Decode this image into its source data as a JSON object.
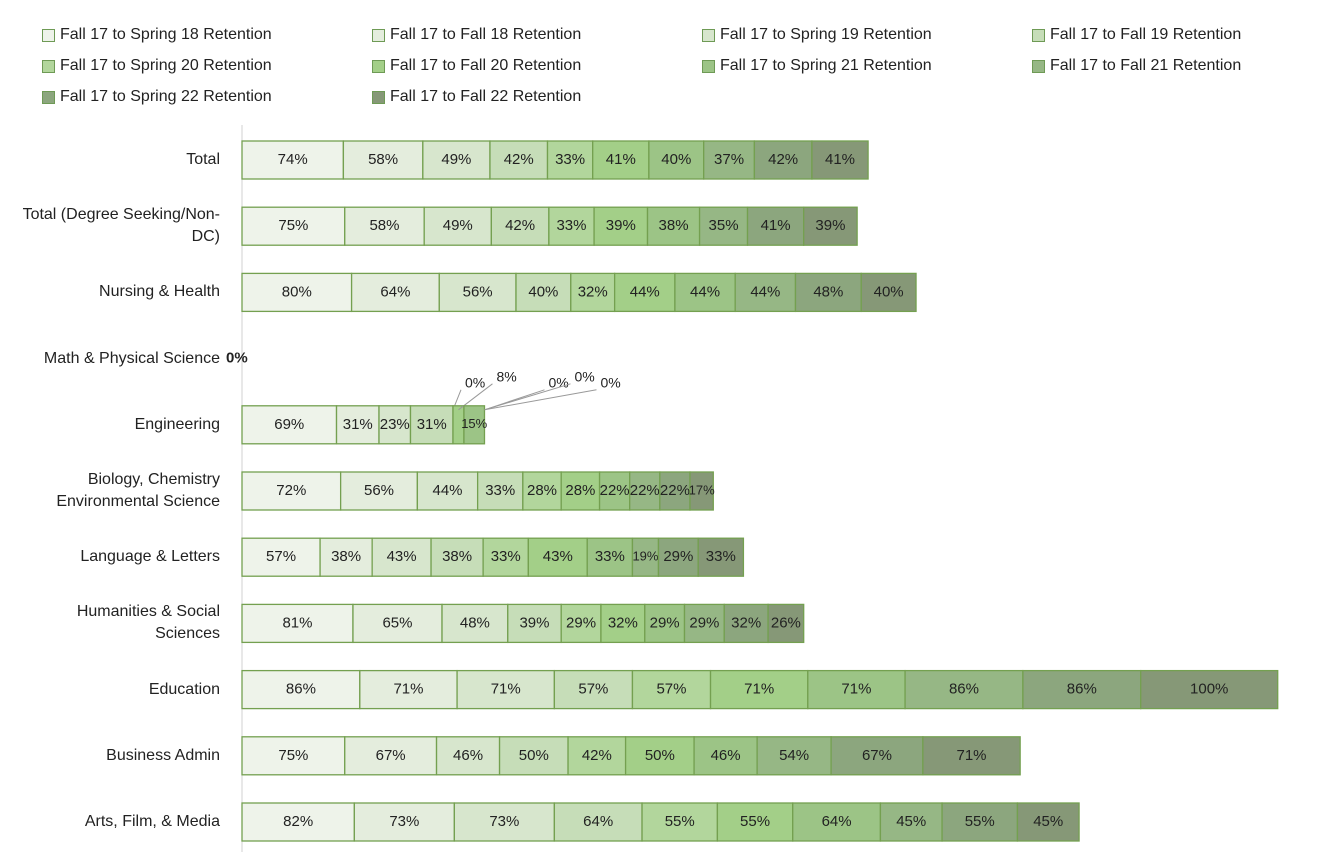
{
  "chart_data": {
    "type": "stacked_bar_horizontal",
    "categories": [
      "Total",
      "Total (Degree Seeking/Non-DC)",
      "Nursing & Health",
      "Math & Physical Science",
      "Engineering",
      "Biology, Chemistry Environmental Science",
      "Language & Letters",
      "Humanities & Social Sciences",
      "Education",
      "Business Admin",
      "Arts, Film, & Media"
    ],
    "series": [
      {
        "name": "Fall 17 to Spring 18 Retention",
        "color": "#eef3ea",
        "values": [
          74,
          75,
          80,
          0,
          69,
          72,
          57,
          81,
          86,
          75,
          82
        ],
        "value_labels": [
          "74%",
          "75%",
          "80%",
          "0%",
          "69%",
          "72%",
          "57%",
          "81%",
          "86%",
          "75%",
          "82%"
        ]
      },
      {
        "name": "Fall 17 to Fall 18 Retention",
        "color": "#e4eddd",
        "values": [
          58,
          58,
          64,
          0,
          31,
          56,
          38,
          65,
          71,
          67,
          73
        ],
        "value_labels": [
          "58%",
          "58%",
          "64%",
          null,
          "31%",
          "56%",
          "38%",
          "65%",
          "71%",
          "67%",
          "73%"
        ]
      },
      {
        "name": "Fall 17 to Spring 19 Retention",
        "color": "#d7e6cd",
        "values": [
          49,
          49,
          56,
          0,
          23,
          44,
          43,
          48,
          71,
          46,
          73
        ],
        "value_labels": [
          "49%",
          "49%",
          "56%",
          null,
          "23%",
          "44%",
          "43%",
          "48%",
          "71%",
          "46%",
          "73%"
        ]
      },
      {
        "name": "Fall 17 to Fall 19 Retention",
        "color": "#c6ddb8",
        "values": [
          42,
          42,
          40,
          0,
          31,
          33,
          38,
          39,
          57,
          50,
          64
        ],
        "value_labels": [
          "42%",
          "42%",
          "40%",
          null,
          "31%",
          "33%",
          "38%",
          "39%",
          "57%",
          "50%",
          "64%"
        ]
      },
      {
        "name": "Fall 17 to Spring 20 Retention",
        "color": "#b2d69c",
        "values": [
          33,
          33,
          32,
          0,
          0,
          28,
          33,
          29,
          57,
          42,
          55
        ],
        "value_labels": [
          "33%",
          "33%",
          "32%",
          null,
          "0%",
          "28%",
          "33%",
          "29%",
          "57%",
          "42%",
          "55%"
        ]
      },
      {
        "name": "Fall 17 to Fall 20 Retention",
        "color": "#a3cf88",
        "values": [
          41,
          39,
          44,
          0,
          8,
          28,
          43,
          32,
          71,
          50,
          55
        ],
        "value_labels": [
          "41%",
          "39%",
          "44%",
          null,
          "8%",
          "28%",
          "43%",
          "32%",
          "71%",
          "50%",
          "55%"
        ]
      },
      {
        "name": "Fall 17 to Spring 21 Retention",
        "color": "#9cc486",
        "values": [
          40,
          38,
          44,
          0,
          15,
          22,
          33,
          29,
          71,
          46,
          64
        ],
        "value_labels": [
          "40%",
          "38%",
          "44%",
          null,
          "15%",
          "22%",
          "33%",
          "29%",
          "71%",
          "46%",
          "64%"
        ]
      },
      {
        "name": "Fall 17 to Fall 21 Retention",
        "color": "#96b785",
        "values": [
          37,
          35,
          44,
          0,
          0,
          22,
          19,
          29,
          86,
          54,
          45
        ],
        "value_labels": [
          "37%",
          "35%",
          "44%",
          null,
          "0%",
          "22%",
          "19%",
          "29%",
          "86%",
          "54%",
          "45%"
        ]
      },
      {
        "name": "Fall 17 to Spring 22 Retention",
        "color": "#8ca67e",
        "values": [
          42,
          41,
          48,
          0,
          0,
          22,
          29,
          32,
          86,
          67,
          55
        ],
        "value_labels": [
          "42%",
          "41%",
          "48%",
          null,
          "0%",
          "22%",
          "29%",
          "32%",
          "86%",
          "67%",
          "55%"
        ]
      },
      {
        "name": "Fall 17 to Fall 22 Retention",
        "color": "#869877",
        "values": [
          41,
          39,
          40,
          0,
          0,
          17,
          33,
          26,
          100,
          71,
          45
        ],
        "value_labels": [
          "41%",
          "39%",
          "40%",
          null,
          "0%",
          "17%",
          "33%",
          "26%",
          "100%",
          "71%",
          "45%"
        ]
      }
    ]
  }
}
